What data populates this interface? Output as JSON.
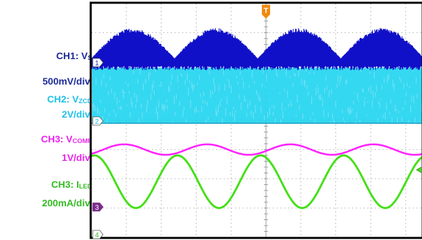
{
  "legend": [
    {
      "label": "CH1: V",
      "sub": "S",
      "color": "#1c2a99"
    },
    {
      "label": "500mV/div.",
      "sub": "",
      "color": "#1c2a99"
    },
    {
      "label": "CH2: V",
      "sub": "ZCD",
      "color": "#1ec0e8"
    },
    {
      "label": "2V/div.",
      "sub": "",
      "color": "#1ec0e8"
    },
    {
      "label": "CH3: V",
      "sub": "COMP",
      "color": "#ee22ee"
    },
    {
      "label": "1V/div.",
      "sub": "",
      "color": "#ee22ee"
    },
    {
      "label": "CH3: I",
      "sub": "LED",
      "color": "#33bb22"
    },
    {
      "label": "200mA/div.",
      "sub": "",
      "color": "#33bb22"
    }
  ],
  "chart_data": {
    "type": "line",
    "grid": true,
    "divisions": {
      "x": 10,
      "y": 8
    },
    "series": [
      {
        "name": "CH1: VS",
        "marker": "1",
        "color": "#1010c8",
        "ref_div": 2.1,
        "kind": "rectified_sine_noise",
        "amplitude_div": 0.9,
        "cycles": 4.2
      },
      {
        "name": "CH2: VZCD",
        "marker": "2",
        "color": "#2ad6f0",
        "ref_div": 4.1,
        "kind": "switching_band",
        "band_div": [
          2.2,
          4.1
        ]
      },
      {
        "name": "CH3: VCOMP",
        "marker": "",
        "color": "#ff22ff",
        "ref_div": 5.0,
        "kind": "sine",
        "amplitude_div": 0.18,
        "cycles": 4.2
      },
      {
        "name": "CH3: ILED",
        "marker": "3",
        "color": "#44e018",
        "ref_div": 7.0,
        "kind": "sine",
        "amplitude_div": 0.9,
        "cycles": 4.2
      }
    ],
    "ch4_marker": "4",
    "trigger_marker": "T"
  }
}
